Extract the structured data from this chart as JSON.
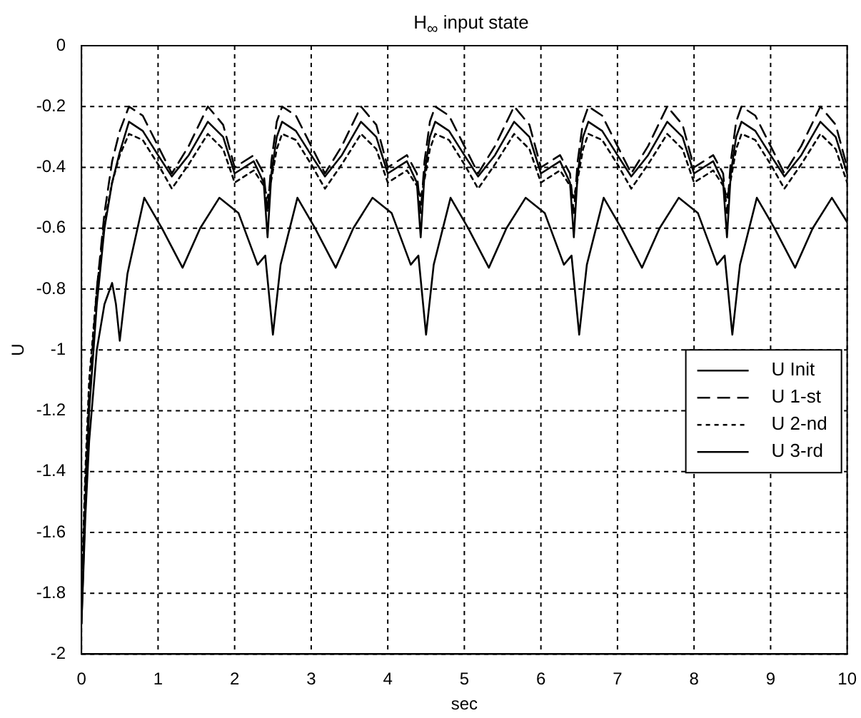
{
  "chart_data": {
    "type": "line",
    "title": "H$_{∞}$ input state",
    "xlabel": "sec",
    "ylabel": "U",
    "xlim": [
      0,
      10
    ],
    "xticks": [
      0,
      1,
      2,
      3,
      4,
      5,
      6,
      7,
      8,
      9,
      10
    ],
    "ylim": [
      -2,
      0
    ],
    "yticks": [
      -2,
      -1.8,
      -1.6,
      -1.4,
      -1.2,
      -1,
      -0.8,
      -0.6,
      -0.4,
      -0.2,
      0
    ],
    "grid": true,
    "legend": "right",
    "marker": "none",
    "series": [
      {
        "name": "U Init",
        "color": "#000000",
        "line_style": "solid",
        "x": [
          0,
          0.05,
          0.1,
          0.2,
          0.3,
          0.4,
          0.5,
          0.62,
          0.8,
          1,
          1.18,
          1.4,
          1.65,
          1.85,
          2,
          2.25,
          2.38,
          2.43,
          2.48,
          2.55,
          2.62,
          2.8,
          3,
          3.18,
          3.4,
          3.65,
          3.85,
          4,
          4.25,
          4.38,
          4.43,
          4.48,
          4.55,
          4.62,
          4.8,
          5,
          5.18,
          5.4,
          5.65,
          5.85,
          6,
          6.25,
          6.38,
          6.43,
          6.48,
          6.55,
          6.62,
          6.8,
          7,
          7.18,
          7.4,
          7.65,
          7.85,
          8,
          8.25,
          8.38,
          8.43,
          8.48,
          8.55,
          8.62,
          8.8,
          9,
          9.18,
          9.4,
          9.65,
          9.85,
          10
        ],
        "values": [
          -1.9,
          -1.5,
          -1.2,
          -0.85,
          -0.6,
          -0.45,
          -0.35,
          -0.25,
          -0.28,
          -0.36,
          -0.43,
          -0.36,
          -0.25,
          -0.3,
          -0.42,
          -0.38,
          -0.45,
          -0.63,
          -0.42,
          -0.3,
          -0.25,
          -0.28,
          -0.36,
          -0.43,
          -0.36,
          -0.25,
          -0.3,
          -0.42,
          -0.38,
          -0.45,
          -0.63,
          -0.42,
          -0.3,
          -0.25,
          -0.28,
          -0.36,
          -0.43,
          -0.36,
          -0.25,
          -0.3,
          -0.42,
          -0.38,
          -0.45,
          -0.63,
          -0.42,
          -0.3,
          -0.25,
          -0.28,
          -0.36,
          -0.43,
          -0.36,
          -0.25,
          -0.3,
          -0.42,
          -0.38,
          -0.45,
          -0.63,
          -0.42,
          -0.3,
          -0.25,
          -0.28,
          -0.36,
          -0.43,
          -0.36,
          -0.25,
          -0.3,
          -0.42
        ]
      },
      {
        "name": "U 1-st",
        "color": "#000000",
        "line_style": "dashed",
        "x": [
          0,
          0.05,
          0.1,
          0.2,
          0.3,
          0.4,
          0.5,
          0.62,
          0.8,
          1,
          1.18,
          1.4,
          1.65,
          1.85,
          2,
          2.25,
          2.38,
          2.43,
          2.48,
          2.55,
          2.62,
          2.8,
          3,
          3.18,
          3.4,
          3.65,
          3.85,
          4,
          4.25,
          4.38,
          4.43,
          4.48,
          4.55,
          4.62,
          4.8,
          5,
          5.18,
          5.4,
          5.65,
          5.85,
          6,
          6.25,
          6.38,
          6.43,
          6.48,
          6.55,
          6.62,
          6.8,
          7,
          7.18,
          7.4,
          7.65,
          7.85,
          8,
          8.25,
          8.38,
          8.43,
          8.48,
          8.55,
          8.62,
          8.8,
          9,
          9.18,
          9.4,
          9.65,
          9.85,
          10
        ],
        "values": [
          -1.85,
          -1.45,
          -1.15,
          -0.8,
          -0.55,
          -0.38,
          -0.28,
          -0.2,
          -0.23,
          -0.33,
          -0.42,
          -0.33,
          -0.2,
          -0.26,
          -0.4,
          -0.36,
          -0.42,
          -0.55,
          -0.38,
          -0.25,
          -0.2,
          -0.23,
          -0.33,
          -0.42,
          -0.33,
          -0.2,
          -0.26,
          -0.4,
          -0.36,
          -0.42,
          -0.55,
          -0.38,
          -0.25,
          -0.2,
          -0.23,
          -0.33,
          -0.42,
          -0.33,
          -0.2,
          -0.26,
          -0.4,
          -0.36,
          -0.42,
          -0.55,
          -0.38,
          -0.25,
          -0.2,
          -0.23,
          -0.33,
          -0.42,
          -0.33,
          -0.2,
          -0.26,
          -0.4,
          -0.36,
          -0.42,
          -0.55,
          -0.38,
          -0.25,
          -0.2,
          -0.23,
          -0.33,
          -0.42,
          -0.33,
          -0.2,
          -0.26,
          -0.4
        ]
      },
      {
        "name": "U 2-nd",
        "color": "#000000",
        "line_style": "dotted",
        "x": [
          0,
          0.05,
          0.1,
          0.2,
          0.3,
          0.4,
          0.5,
          0.62,
          0.8,
          1,
          1.18,
          1.4,
          1.65,
          1.85,
          2,
          2.25,
          2.38,
          2.43,
          2.48,
          2.55,
          2.62,
          2.8,
          3,
          3.18,
          3.4,
          3.65,
          3.85,
          4,
          4.25,
          4.38,
          4.43,
          4.48,
          4.55,
          4.62,
          4.8,
          5,
          5.18,
          5.4,
          5.65,
          5.85,
          6,
          6.25,
          6.38,
          6.43,
          6.48,
          6.55,
          6.62,
          6.8,
          7,
          7.18,
          7.4,
          7.65,
          7.85,
          8,
          8.25,
          8.38,
          8.43,
          8.48,
          8.55,
          8.62,
          8.8,
          9,
          9.18,
          9.4,
          9.65,
          9.85,
          10
        ],
        "values": [
          -1.8,
          -1.4,
          -1.1,
          -0.8,
          -0.58,
          -0.45,
          -0.36,
          -0.29,
          -0.31,
          -0.39,
          -0.47,
          -0.39,
          -0.29,
          -0.34,
          -0.45,
          -0.41,
          -0.46,
          -0.5,
          -0.44,
          -0.34,
          -0.29,
          -0.31,
          -0.39,
          -0.47,
          -0.39,
          -0.29,
          -0.34,
          -0.45,
          -0.41,
          -0.46,
          -0.5,
          -0.44,
          -0.34,
          -0.29,
          -0.31,
          -0.39,
          -0.47,
          -0.39,
          -0.29,
          -0.34,
          -0.45,
          -0.41,
          -0.46,
          -0.5,
          -0.44,
          -0.34,
          -0.29,
          -0.31,
          -0.39,
          -0.47,
          -0.39,
          -0.29,
          -0.34,
          -0.45,
          -0.41,
          -0.46,
          -0.5,
          -0.44,
          -0.34,
          -0.29,
          -0.31,
          -0.39,
          -0.47,
          -0.39,
          -0.29,
          -0.34,
          -0.45
        ]
      },
      {
        "name": "U 3-rd",
        "color": "#000000",
        "line_style": "solid",
        "x": [
          0,
          0.05,
          0.1,
          0.2,
          0.3,
          0.4,
          0.45,
          0.5,
          0.6,
          0.82,
          1.05,
          1.32,
          1.55,
          1.8,
          2.05,
          2.3,
          2.4,
          2.5,
          2.6,
          2.82,
          3.05,
          3.32,
          3.55,
          3.8,
          4.05,
          4.3,
          4.4,
          4.5,
          4.6,
          4.82,
          5.05,
          5.32,
          5.55,
          5.8,
          6.05,
          6.3,
          6.4,
          6.5,
          6.6,
          6.82,
          7.05,
          7.32,
          7.55,
          7.8,
          8.05,
          8.3,
          8.4,
          8.5,
          8.6,
          8.82,
          9.05,
          9.32,
          9.55,
          9.8,
          10
        ],
        "values": [
          -1.9,
          -1.55,
          -1.3,
          -1,
          -0.85,
          -0.78,
          -0.85,
          -0.97,
          -0.75,
          -0.5,
          -0.6,
          -0.73,
          -0.6,
          -0.5,
          -0.55,
          -0.72,
          -0.69,
          -0.95,
          -0.72,
          -0.5,
          -0.6,
          -0.73,
          -0.6,
          -0.5,
          -0.55,
          -0.72,
          -0.69,
          -0.95,
          -0.72,
          -0.5,
          -0.6,
          -0.73,
          -0.6,
          -0.5,
          -0.55,
          -0.72,
          -0.69,
          -0.95,
          -0.72,
          -0.5,
          -0.6,
          -0.73,
          -0.6,
          -0.5,
          -0.55,
          -0.72,
          -0.69,
          -0.95,
          -0.72,
          -0.5,
          -0.6,
          -0.73,
          -0.6,
          -0.5,
          -0.58
        ]
      }
    ]
  }
}
